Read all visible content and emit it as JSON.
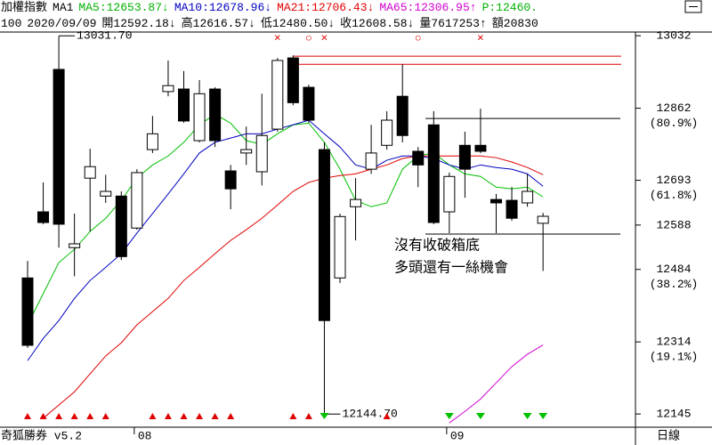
{
  "header": {
    "line1": [
      {
        "text": "加權指數",
        "color": "#000000"
      },
      {
        "text": "MA1",
        "color": "#000000"
      },
      {
        "text": "MA5:12653.87",
        "color": "#00b000"
      },
      {
        "text": "↓",
        "color": "#00b000"
      },
      {
        "text": "MA10:12678.96",
        "color": "#0000c0"
      },
      {
        "text": "↓",
        "color": "#0000c0"
      },
      {
        "text": "MA21:12706.43",
        "color": "#e00000"
      },
      {
        "text": "↓",
        "color": "#e00000"
      },
      {
        "text": "MA65:12306.95",
        "color": "#d000d0"
      },
      {
        "text": "↑",
        "color": "#d000d0"
      },
      {
        "text": "P:12460.",
        "color": "#00b000"
      }
    ],
    "line2": [
      {
        "text": "100",
        "color": "#000000"
      },
      {
        "text": "2020/09/09",
        "color": "#000000"
      },
      {
        "text": "開12592.18",
        "color": "#000000"
      },
      {
        "text": "↓",
        "color": "#000000"
      },
      {
        "text": "高12616.57",
        "color": "#000000"
      },
      {
        "text": "↓",
        "color": "#000000"
      },
      {
        "text": "低12480.50",
        "color": "#000000"
      },
      {
        "text": "↓",
        "color": "#000000"
      },
      {
        "text": "收12608.58",
        "color": "#000000"
      },
      {
        "text": "↓",
        "color": "#000000"
      },
      {
        "text": "量7617253",
        "color": "#000000"
      },
      {
        "text": "↑",
        "color": "#000000"
      },
      {
        "text": "額20830",
        "color": "#000000"
      }
    ]
  },
  "chart_data": {
    "type": "candlestick",
    "categories": [
      null,
      null,
      null,
      null,
      null,
      null,
      null,
      "08",
      null,
      null,
      null,
      null,
      null,
      null,
      null,
      null,
      null,
      null,
      null,
      null,
      null,
      null,
      null,
      null,
      null,
      null,
      null,
      "09",
      null,
      null,
      null,
      null,
      null,
      null
    ],
    "open": [
      12464,
      12619,
      12953,
      12535,
      12698,
      12656,
      12656,
      12581,
      12765,
      12901,
      12907,
      12786,
      12907,
      12715,
      12757,
      12713,
      12813,
      12980,
      12911,
      12765,
      12464,
      12631,
      12719,
      12775,
      12890,
      12761,
      12823,
      12619,
      12775,
      12775,
      12648,
      12646,
      12640,
      12592.18
    ],
    "high": [
      12504,
      12688,
      13031.7,
      12615,
      12767,
      12706,
      12667,
      12719,
      12844,
      12974,
      12949,
      12928,
      12911,
      12729,
      12819,
      12896,
      12980,
      12986,
      12917,
      12782,
      12615,
      12698,
      12823,
      12855,
      12965,
      12771,
      12855,
      12711,
      12807,
      12861,
      12661,
      12677,
      12708,
      12616.57
    ],
    "low": [
      12300,
      12590,
      12535,
      12468,
      12573,
      12640,
      12506,
      12577,
      12757,
      12890,
      12828,
      12782,
      12771,
      12625,
      12729,
      12681,
      12807,
      12869,
      12828,
      12144.7,
      12452,
      12552,
      12708,
      12765,
      12782,
      12677,
      12590,
      12569,
      12652,
      12757,
      12569,
      12598,
      12631,
      12480.5
    ],
    "close": [
      12306,
      12594,
      12590,
      12544,
      12725,
      12667,
      12514,
      12711,
      12802,
      12915,
      12832,
      12896,
      12786,
      12673,
      12765,
      12798,
      12974,
      12875,
      12834,
      12364,
      12608,
      12648,
      12757,
      12834,
      12798,
      12729,
      12594,
      12702,
      12719,
      12761,
      12640,
      12604,
      12667,
      12608.58
    ],
    "candle_color": "#000000",
    "series": [
      {
        "color": "#00c000",
        "values": [
          12354,
          12427,
          12500,
          12531,
          12573,
          12604,
          12646,
          12698,
          12729,
          12750,
          12782,
          12823,
          12848,
          12827,
          12786,
          12777,
          12802,
          12823,
          12827,
          12782,
          12719,
          12646,
          12631,
          12640,
          12719,
          12750,
          12757,
          12729,
          12708,
          12702,
          12677,
          12673,
          12677,
          12654
        ]
      },
      {
        "color": "#0000c0",
        "values": [
          12270,
          12322,
          12364,
          12416,
          12458,
          12489,
          12521,
          12569,
          12615,
          12661,
          12708,
          12757,
          12782,
          12792,
          12802,
          12802,
          12813,
          12823,
          12834,
          12802,
          12771,
          12729,
          12719,
          12740,
          12750,
          12750,
          12744,
          12729,
          12719,
          12729,
          12723,
          12719,
          12708,
          12679
        ]
      },
      {
        "color": "#e00000",
        "values": [
          null,
          12135,
          12166,
          12197,
          12239,
          12281,
          12312,
          12354,
          12385,
          12416,
          12458,
          12489,
          12521,
          12552,
          12577,
          12604,
          12635,
          12667,
          12688,
          12698,
          12704,
          12708,
          12719,
          12729,
          12744,
          12750,
          12750,
          12750,
          12750,
          12750,
          12746,
          12736,
          12723,
          12706
        ]
      },
      {
        "color": "#d000d0",
        "values": [
          null,
          null,
          null,
          null,
          null,
          null,
          null,
          null,
          null,
          null,
          null,
          null,
          null,
          null,
          null,
          null,
          null,
          null,
          null,
          null,
          null,
          null,
          null,
          null,
          null,
          null,
          null,
          12124,
          12151,
          12180,
          12218,
          12256,
          12285,
          12307
        ]
      }
    ],
    "ylim": [
      12114,
      13049
    ],
    "yticks": [
      13032,
      12862,
      12693,
      12588,
      12484,
      12314,
      12145
    ],
    "percent_labels": [
      {
        "value": 12862,
        "label": "(80.9%)"
      },
      {
        "value": 12693,
        "label": "(61.8%)"
      },
      {
        "value": 12484,
        "label": "(38.2%)"
      },
      {
        "value": 12314,
        "label": "(19.1%)"
      }
    ],
    "ref_lines": [
      {
        "value": 12984,
        "color": "#e00000"
      },
      {
        "value": 12965,
        "color": "#e00000"
      },
      {
        "value": 12838,
        "color": "#000000"
      },
      {
        "value": 12567,
        "color": "#000000"
      }
    ],
    "extremes": [
      {
        "value": 13031.7,
        "label": "13031.70"
      },
      {
        "value": 12144.7,
        "label": "12144.70"
      }
    ],
    "annotation": [
      "沒有收破箱底",
      "多頭還有一絲機會"
    ],
    "top_marks": [
      null,
      null,
      null,
      null,
      null,
      null,
      null,
      null,
      null,
      null,
      null,
      null,
      null,
      null,
      null,
      null,
      "×",
      null,
      "○",
      "×",
      null,
      null,
      null,
      null,
      null,
      "○",
      null,
      null,
      null,
      "×",
      null,
      null,
      null,
      null
    ],
    "top_mark_color": "#e00000",
    "signals": [
      "up",
      "up",
      "up",
      "up",
      "up",
      "up",
      null,
      null,
      "up",
      "up",
      "up",
      "up",
      "up",
      "up",
      null,
      null,
      null,
      "up",
      "up",
      "down",
      null,
      null,
      null,
      "up",
      null,
      null,
      null,
      "down",
      null,
      "down",
      null,
      null,
      "down",
      "down"
    ],
    "signal_colors": {
      "up": "#e00000",
      "down": "#00c000"
    }
  },
  "footer": {
    "left": "奇狐勝券 v5.2",
    "right": "日線"
  }
}
